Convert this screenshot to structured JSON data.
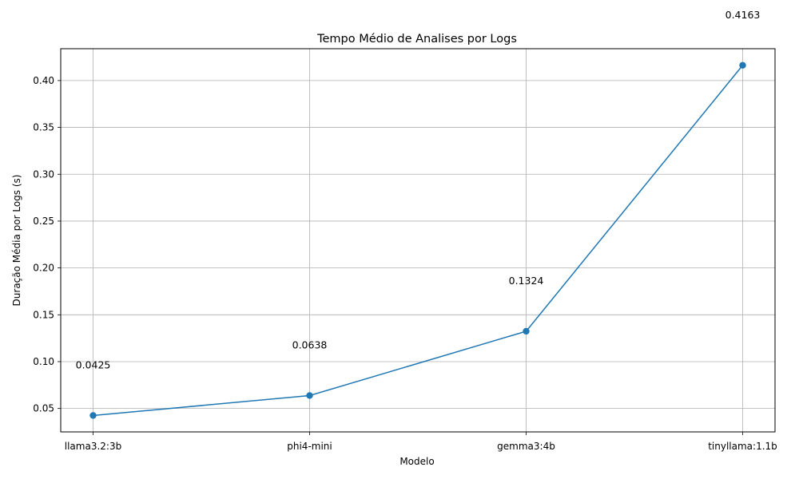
{
  "chart_data": {
    "type": "line",
    "title": "Tempo Médio de Analises por Logs",
    "xlabel": "Modelo",
    "ylabel": "Duração Média por Logs (s)",
    "categories": [
      "llama3.2:3b",
      "phi4-mini",
      "gemma3:4b",
      "tinyllama:1.1b"
    ],
    "series": [
      {
        "values": [
          0.0425,
          0.0638,
          0.1324,
          0.4163
        ]
      }
    ],
    "data_labels": [
      "0.0425",
      "0.0638",
      "0.1324",
      "0.4163"
    ],
    "ylim": [
      0.025,
      0.434
    ],
    "yticks": [
      0.05,
      0.1,
      0.15,
      0.2,
      0.25,
      0.3,
      0.35,
      0.4
    ],
    "ytick_labels": [
      "0.05",
      "0.10",
      "0.15",
      "0.20",
      "0.25",
      "0.30",
      "0.35",
      "0.40"
    ],
    "grid": true,
    "line_color": "#1f77b4",
    "grid_color": "#b0b0b0"
  }
}
